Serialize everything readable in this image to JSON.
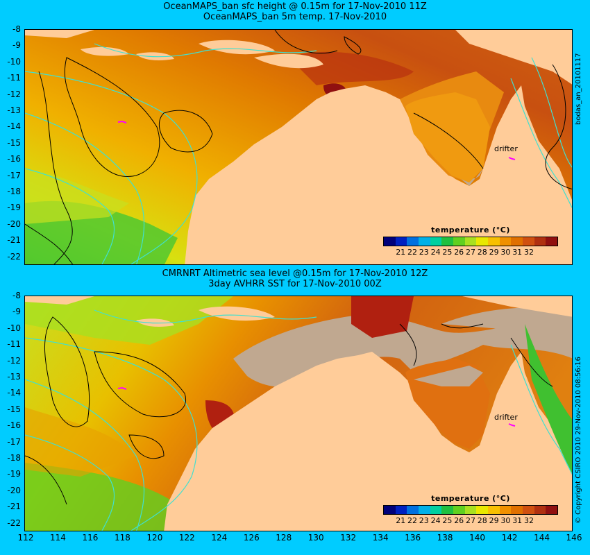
{
  "top_panel": {
    "title_line1": "OceanMAPS_ban sfc height @ 0.15m for 17-Nov-2010 11Z",
    "title_line2": "OceanMAPS_ban 5m temp. 17-Nov-2010",
    "side_label": "bodas_an_20101117",
    "drifter_label": "drifter",
    "legend_title": "temperature (°C)"
  },
  "bottom_panel": {
    "title_line1": "CMRNRT Altimetric sea level  @0.15m  for 17-Nov-2010 12Z",
    "title_line2": "3day AVHRR SST for 17-Nov-2010 00Z",
    "side_label": "© Copyright CSIRO 2010   29-Nov-2010 08:56:16",
    "drifter_label": "drifter",
    "legend_title": "temperature (°C)"
  },
  "axes": {
    "latitude_ticks": [
      "-8",
      "-9",
      "-10",
      "-11",
      "-12",
      "-13",
      "-14",
      "-15",
      "-16",
      "-17",
      "-18",
      "-19",
      "-20",
      "-21",
      "-22"
    ],
    "longitude_ticks": [
      "112",
      "114",
      "116",
      "118",
      "120",
      "122",
      "124",
      "126",
      "128",
      "130",
      "132",
      "134",
      "136",
      "138",
      "140",
      "142",
      "144",
      "146"
    ]
  },
  "legend": {
    "tick_labels": [
      "21",
      "22",
      "23",
      "24",
      "25",
      "26",
      "27",
      "28",
      "29",
      "30",
      "31",
      "32"
    ],
    "colors": [
      "#00007a",
      "#0020c0",
      "#0070e0",
      "#00b0e8",
      "#00d0a0",
      "#20c040",
      "#60d020",
      "#a8e020",
      "#e8e800",
      "#f8c000",
      "#f09000",
      "#e07000",
      "#d05010",
      "#b03010",
      "#901010"
    ]
  },
  "colors": {
    "background": "#00ccff",
    "land": "#ffcc99",
    "nodata": "#c0a890",
    "contour_cyan": "#40e0d0"
  }
}
